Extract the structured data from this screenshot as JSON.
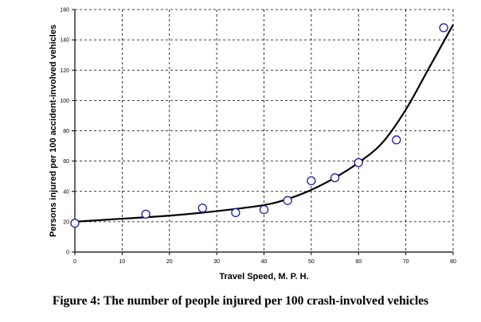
{
  "chart_data": {
    "type": "scatter",
    "xlabel": "Travel Speed, M. P. H.",
    "ylabel": "Persons injured per 100 accident-involved vehicles",
    "xlim": [
      0,
      80
    ],
    "ylim": [
      0,
      160
    ],
    "xticks": [
      0,
      10,
      20,
      30,
      40,
      50,
      60,
      70,
      80
    ],
    "yticks": [
      0,
      20,
      40,
      60,
      80,
      100,
      120,
      140,
      160
    ],
    "grid": true,
    "series": [
      {
        "type": "scatter",
        "marker": "open-circle",
        "x": [
          0,
          15,
          27,
          34,
          40,
          45,
          50,
          55,
          60,
          68,
          78
        ],
        "y": [
          19,
          25,
          29,
          26,
          28,
          34,
          47,
          49,
          59,
          74,
          148
        ]
      },
      {
        "type": "line",
        "style": "smooth-trend",
        "x": [
          0,
          10,
          20,
          30,
          40,
          45,
          50,
          55,
          60,
          65,
          70,
          75,
          80
        ],
        "y": [
          20,
          22,
          24,
          27,
          31,
          35,
          41,
          49,
          59,
          72,
          94,
          122,
          150
        ]
      }
    ]
  },
  "caption": "Figure 4: The number of people injured per 100 crash-involved vehicles",
  "colors": {
    "marker_stroke": "#1a1aa6",
    "line": "#000000",
    "grid": "#000000"
  }
}
